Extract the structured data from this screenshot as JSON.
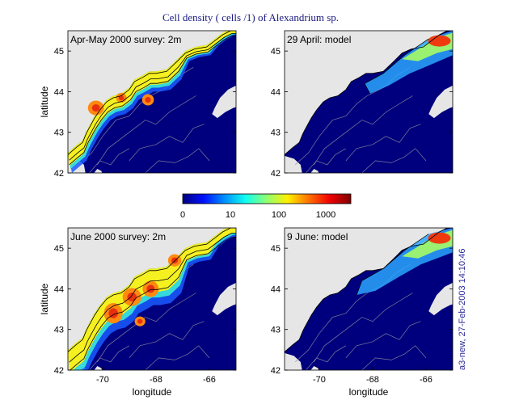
{
  "figure": {
    "title": "Cell density ( cells /1) of Alexandrium sp.",
    "stamp": "a3-new, 27-Feb-2003 14:10:46"
  },
  "colorbar": {
    "ticks": [
      "0",
      "10",
      "100",
      "1000"
    ],
    "stops": [
      "#00007f",
      "#0010ff",
      "#0090ff",
      "#10ffef",
      "#90ff70",
      "#ffef00",
      "#ff7000",
      "#ef0000",
      "#7f0000"
    ]
  },
  "chart_data": [
    {
      "type": "heatmap",
      "panel_label": "Apr-May 2000 survey: 2m",
      "ylabel": "latitude",
      "xlabel": "",
      "xlim": [
        -71.3,
        -65.0
      ],
      "ylim": [
        42.0,
        45.5
      ],
      "yticks": [
        "42",
        "43",
        "44",
        "45"
      ],
      "xticks": [],
      "colors": {
        "land": "#e6e6e6",
        "ocean": "#00007f"
      }
    },
    {
      "type": "heatmap",
      "panel_label": "29 April: model",
      "ylabel": "",
      "xlabel": "",
      "xlim": [
        -71.3,
        -65.0
      ],
      "ylim": [
        42.0,
        45.5
      ],
      "yticks": [
        "42",
        "43",
        "44",
        "45"
      ],
      "xticks": [],
      "colors": {
        "land": "#e6e6e6",
        "ocean": "#00007f"
      }
    },
    {
      "type": "heatmap",
      "panel_label": "June 2000 survey: 2m",
      "ylabel": "latitude",
      "xlabel": "longitude",
      "xlim": [
        -71.3,
        -65.0
      ],
      "ylim": [
        42.0,
        45.5
      ],
      "yticks": [
        "42",
        "43",
        "44",
        "45"
      ],
      "xticks": [
        "-70",
        "-68",
        "-66"
      ],
      "colors": {
        "land": "#e6e6e6",
        "ocean": "#00007f"
      }
    },
    {
      "type": "heatmap",
      "panel_label": "9 June: model",
      "ylabel": "",
      "xlabel": "longitude",
      "xlim": [
        -71.3,
        -65.0
      ],
      "ylim": [
        42.0,
        45.5
      ],
      "yticks": [
        "42",
        "43",
        "44",
        "45"
      ],
      "xticks": [
        "-70",
        "-68",
        "-66"
      ],
      "colors": {
        "land": "#e6e6e6",
        "ocean": "#00007f"
      }
    }
  ]
}
